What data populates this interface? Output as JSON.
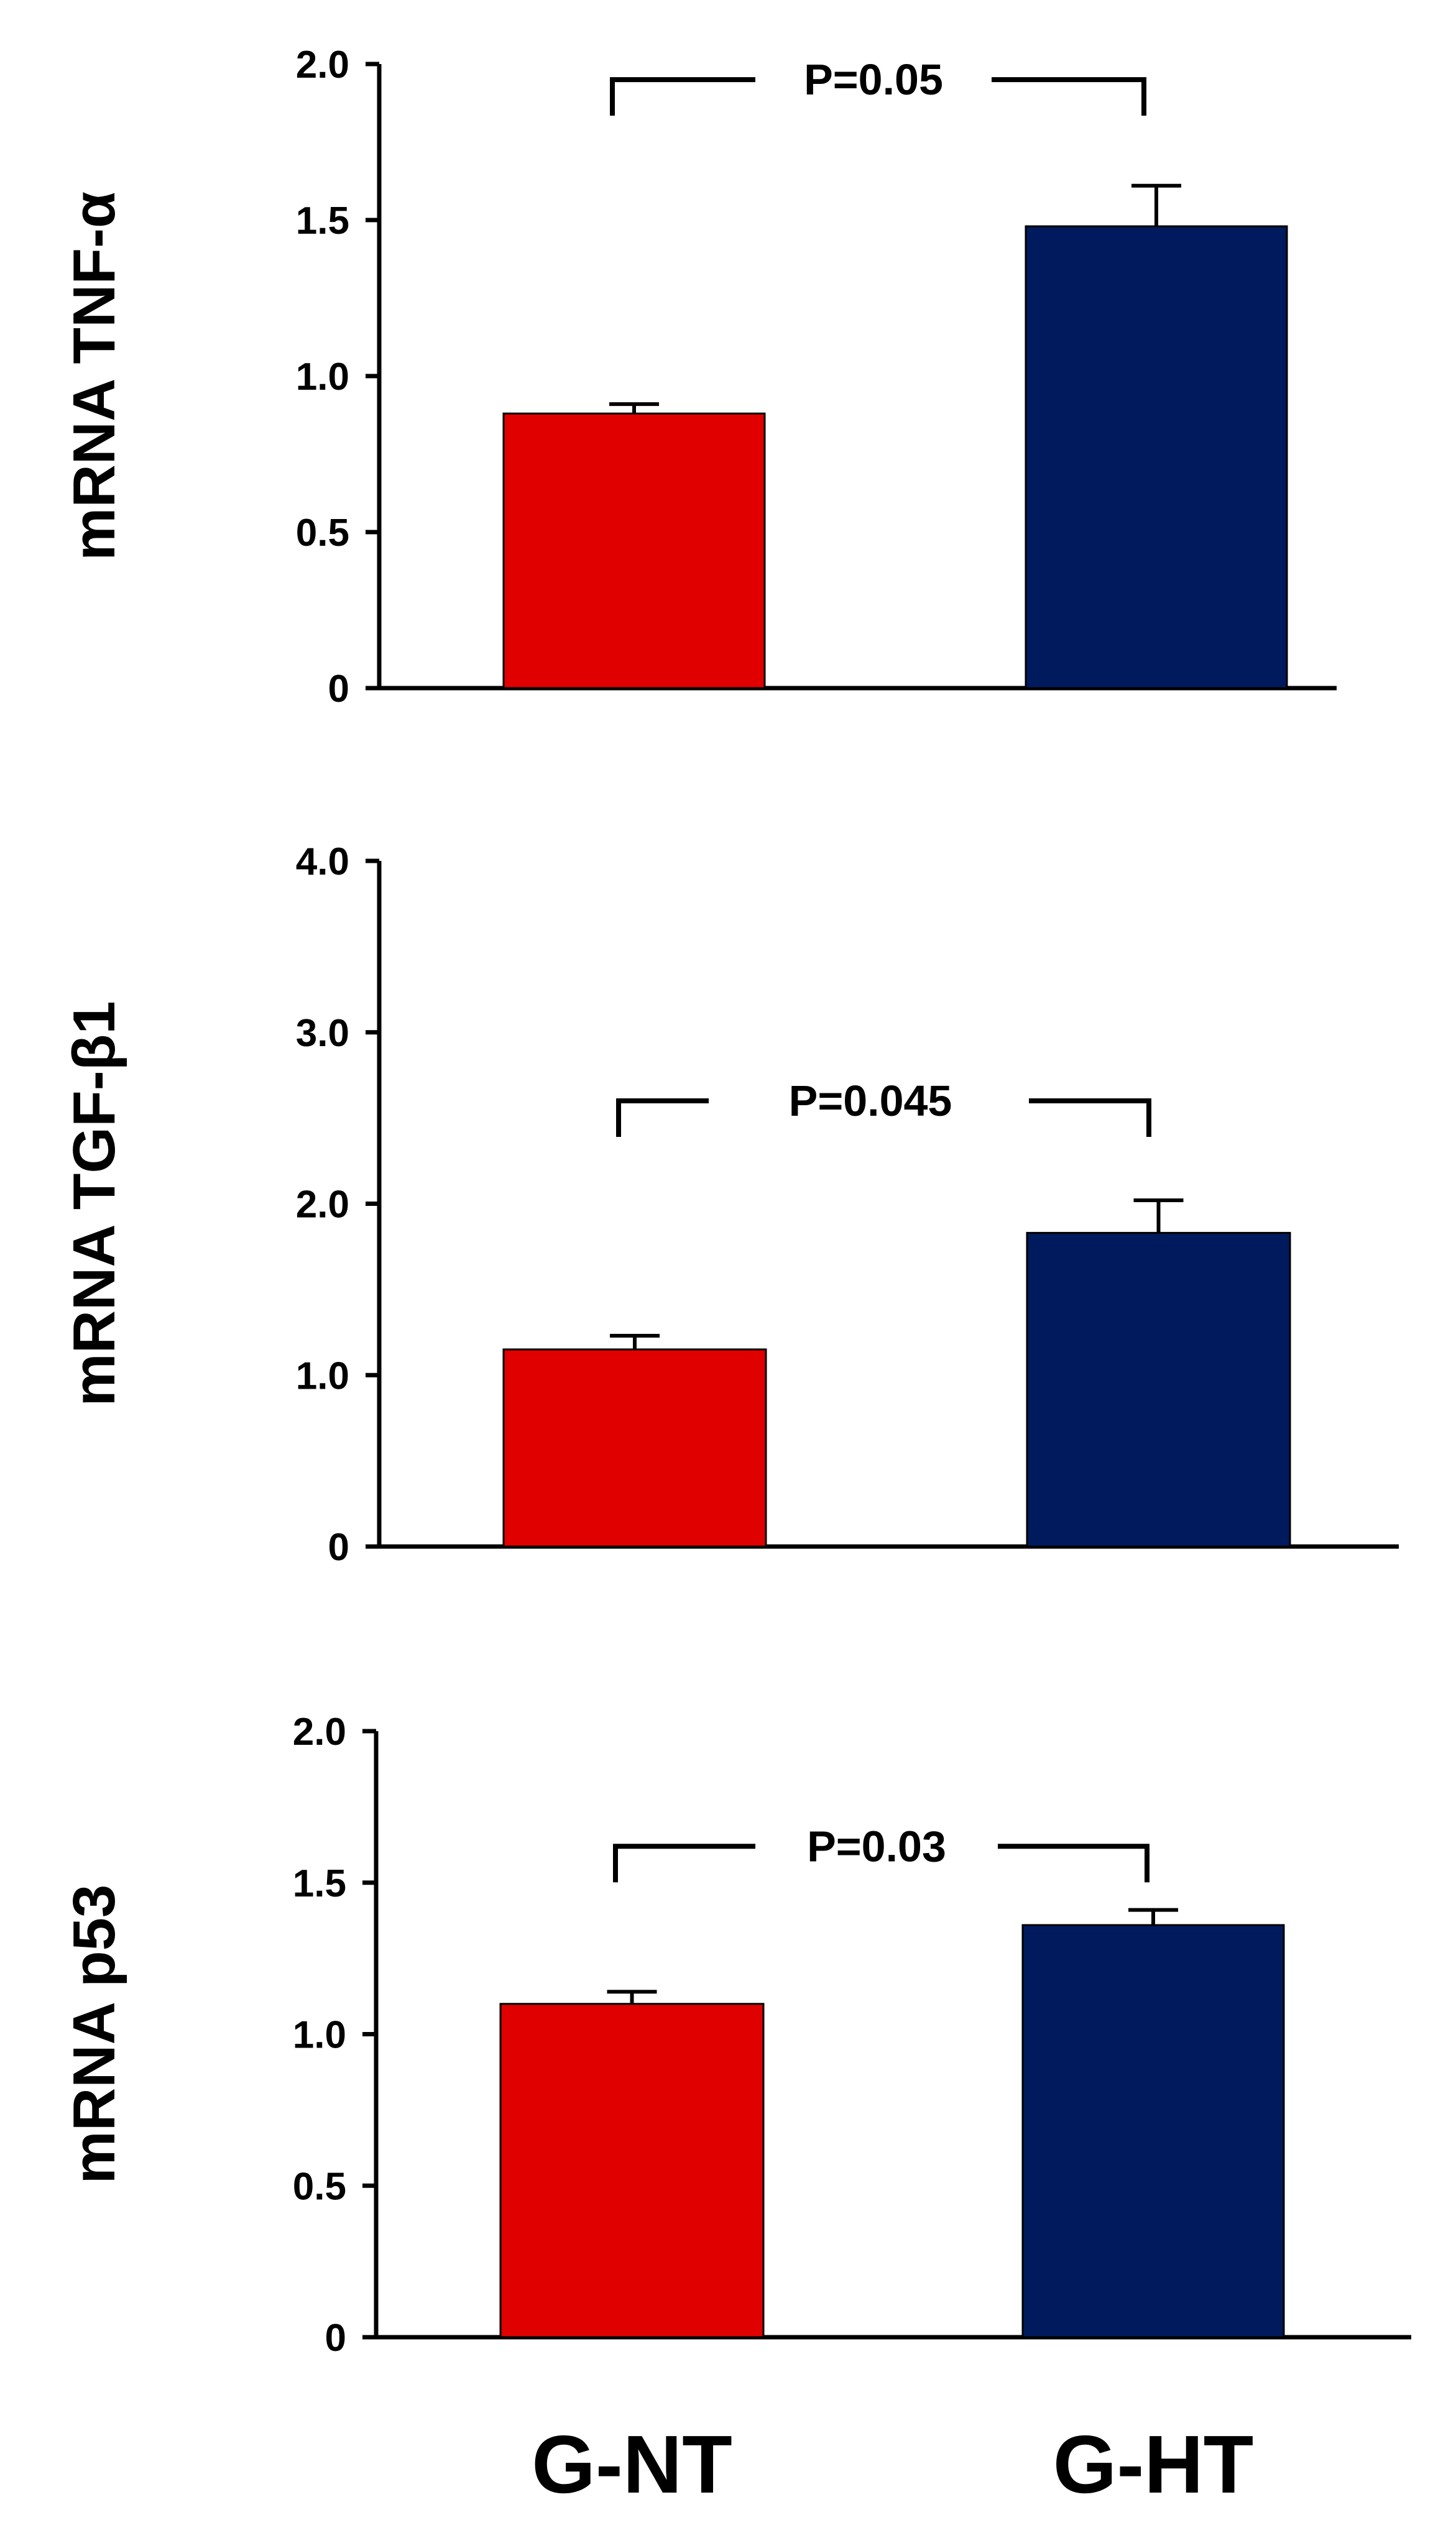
{
  "chart_data": [
    {
      "type": "bar",
      "title": "",
      "xlabel": "",
      "ylabel": "mRNA TNF-α",
      "categories": [
        "G-NT",
        "G-HT"
      ],
      "values": [
        0.88,
        1.48
      ],
      "errors": [
        0.03,
        0.13
      ],
      "ylim": [
        0,
        2.0
      ],
      "yticks": [
        0,
        0.5,
        1.0,
        1.5,
        2.0
      ],
      "ytick_labels": [
        "0",
        "0.5",
        "1.0",
        "1.5",
        "2.0"
      ],
      "annotation": "P=0.05",
      "annotation_y": 1.95
    },
    {
      "type": "bar",
      "title": "",
      "xlabel": "",
      "ylabel": "mRNA TGF-β1",
      "categories": [
        "G-NT",
        "G-HT"
      ],
      "values": [
        1.15,
        1.83
      ],
      "errors": [
        0.08,
        0.19
      ],
      "ylim": [
        0,
        4.0
      ],
      "yticks": [
        0,
        1.0,
        2.0,
        3.0,
        4.0
      ],
      "ytick_labels": [
        "0",
        "1.0",
        "2.0",
        "3.0",
        "4.0"
      ],
      "annotation": "P=0.045",
      "annotation_y": 2.6
    },
    {
      "type": "bar",
      "title": "",
      "xlabel": "",
      "ylabel": "mRNA p53",
      "categories": [
        "G-NT",
        "G-HT"
      ],
      "values": [
        1.1,
        1.36
      ],
      "errors": [
        0.04,
        0.05
      ],
      "ylim": [
        0,
        2.0
      ],
      "yticks": [
        0,
        0.5,
        1.0,
        1.5,
        2.0
      ],
      "ytick_labels": [
        "0",
        "0.5",
        "1.0",
        "1.5",
        "2.0"
      ],
      "annotation": "P=0.03",
      "annotation_y": 1.62
    }
  ],
  "categories": [
    "G-NT",
    "G-HT"
  ],
  "colors": {
    "g_nt": "#e00000",
    "g_ht": "#001a5e",
    "axis": "#000000"
  }
}
